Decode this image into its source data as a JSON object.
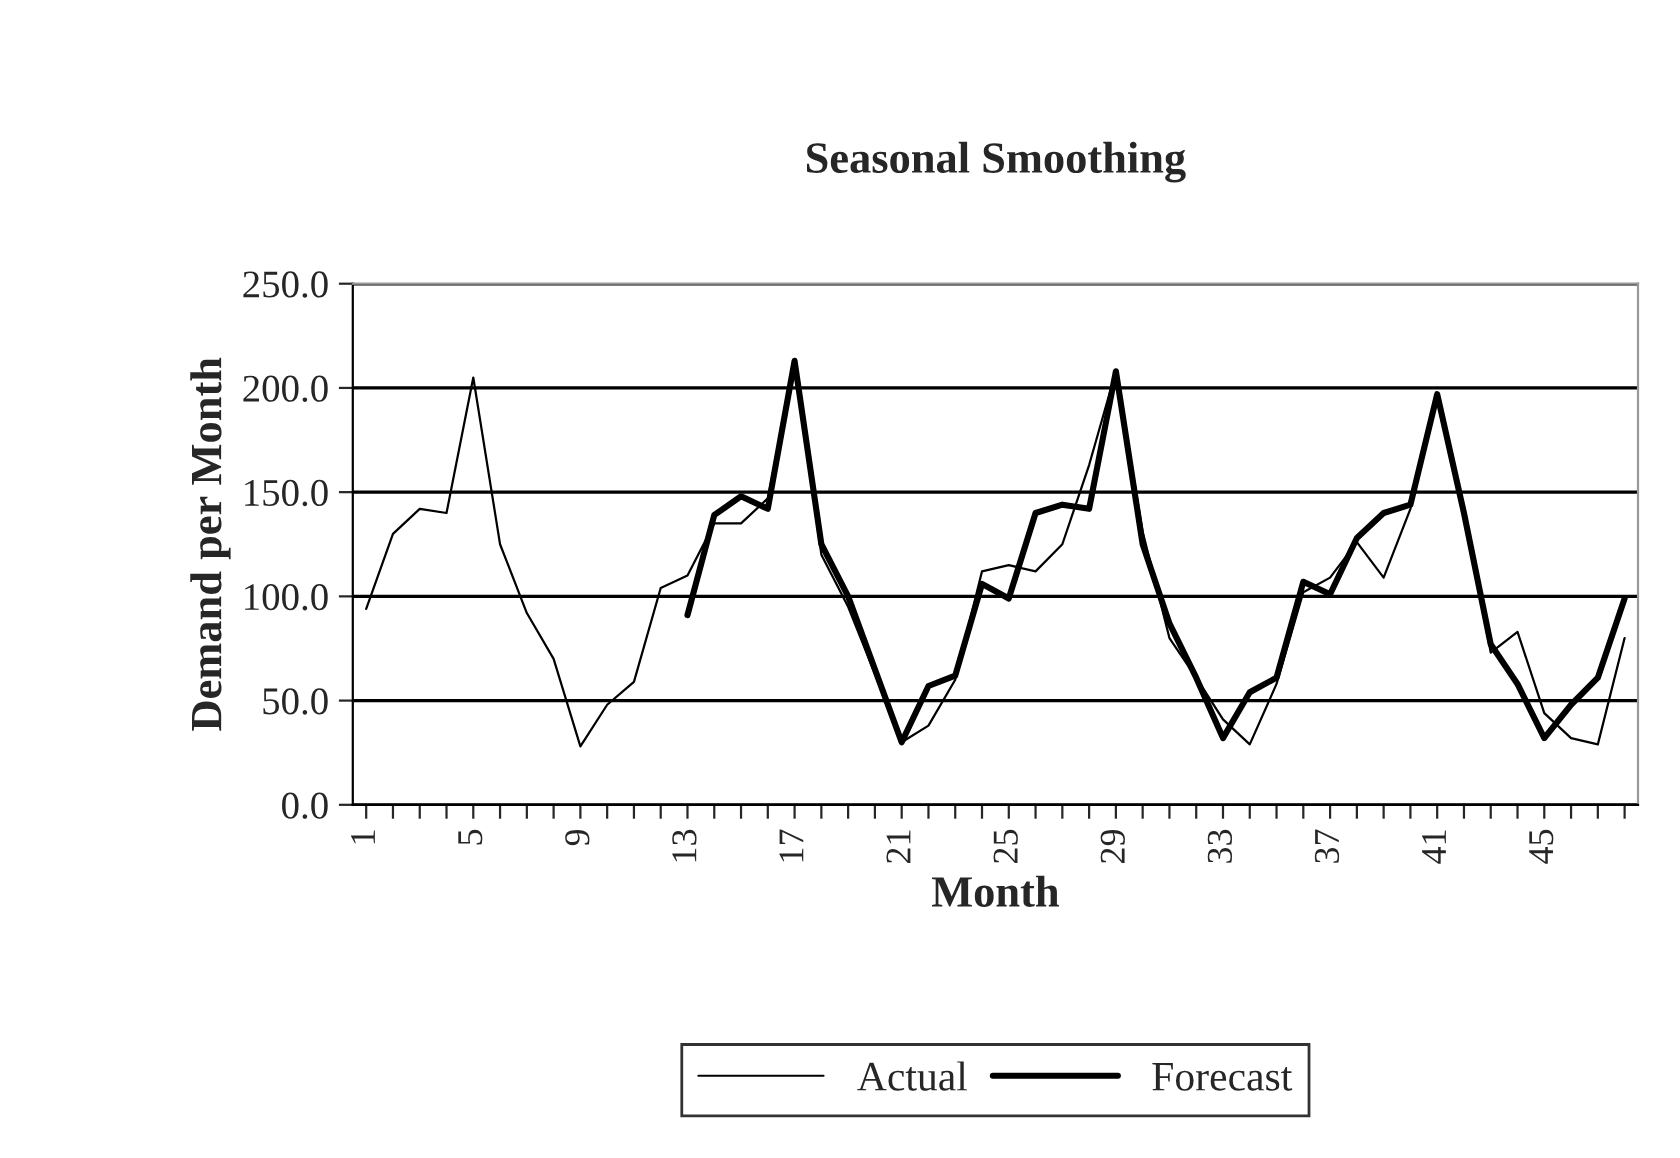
{
  "chart_data": {
    "type": "line",
    "title": "Seasonal Smoothing",
    "xlabel": "Month",
    "ylabel": "Demand per Month",
    "categories": [
      "1",
      null,
      null,
      null,
      "5",
      null,
      null,
      null,
      "9",
      null,
      null,
      null,
      "13",
      null,
      null,
      null,
      "17",
      null,
      null,
      null,
      "21",
      null,
      null,
      null,
      "25",
      null,
      null,
      null,
      "29",
      null,
      null,
      null,
      "33",
      null,
      null,
      null,
      "37",
      null,
      null,
      null,
      "41",
      null,
      null,
      null,
      "45",
      null,
      null,
      null
    ],
    "series": [
      {
        "name": "Actual",
        "color": "#000000",
        "values": [
          94,
          130,
          142,
          140,
          205,
          125,
          92,
          70,
          28,
          48,
          59,
          104,
          110,
          135,
          135,
          147,
          211,
          120,
          95,
          63,
          30,
          38,
          60,
          112,
          115,
          112,
          125,
          163,
          208,
          131,
          80,
          61,
          41,
          29,
          58,
          102,
          109,
          126,
          109,
          142,
          197,
          140,
          73,
          83,
          44,
          32,
          29,
          80
        ]
      },
      {
        "name": "Forecast",
        "color": "#000000",
        "values": [
          null,
          null,
          null,
          null,
          null,
          null,
          null,
          null,
          null,
          null,
          null,
          null,
          91,
          139,
          148,
          142,
          213,
          125,
          100,
          65,
          30,
          57,
          62,
          106,
          99,
          140,
          144,
          142,
          208,
          125,
          87,
          61,
          32,
          54,
          61,
          107,
          101,
          128,
          140,
          144,
          197,
          140,
          77,
          58,
          32,
          48,
          61,
          99
        ]
      }
    ],
    "ylim": [
      0,
      250
    ],
    "yticks": [
      {
        "value": 0,
        "label": "0.0"
      },
      {
        "value": 50,
        "label": "50.0"
      },
      {
        "value": 100,
        "label": "100.0"
      },
      {
        "value": 150,
        "label": "150.0"
      },
      {
        "value": 200,
        "label": "200.0"
      },
      {
        "value": 250,
        "label": "250.0"
      }
    ],
    "grid": "y",
    "legend": "bottom",
    "marker": "none",
    "line_style": "solid"
  }
}
